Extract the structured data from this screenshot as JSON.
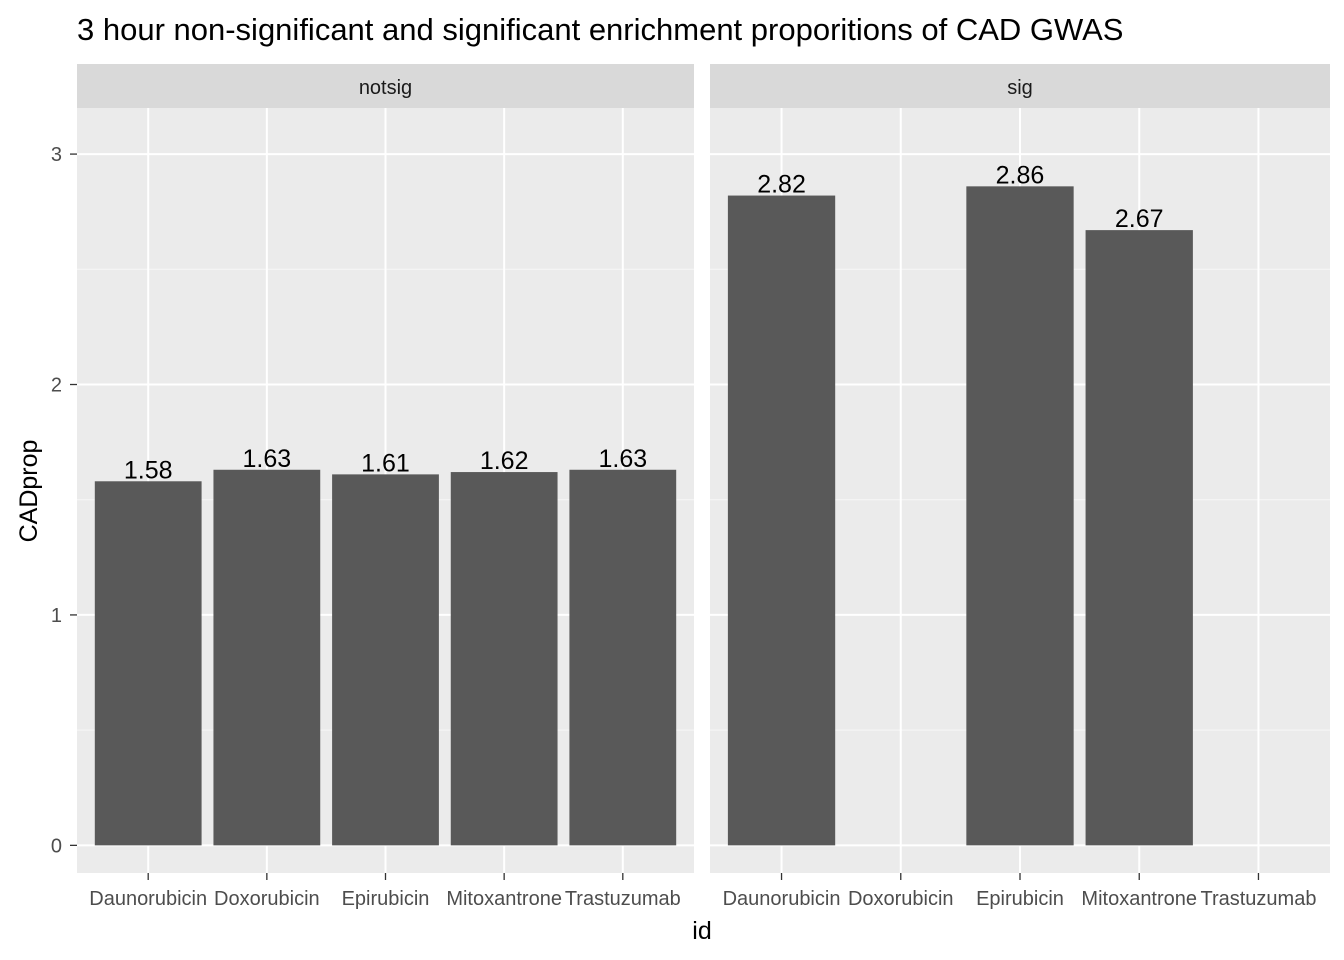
{
  "chart_data": {
    "type": "bar",
    "title": "3 hour non-significant and significant enrichment proporitions of CAD GWAS",
    "xlabel": "id",
    "ylabel": "CADprop",
    "ylim": [
      -0.12,
      3.2
    ],
    "yticks": [
      0,
      1,
      2,
      3
    ],
    "grid": true,
    "legend": "none",
    "colors": {
      "bar": "#595959",
      "panel_bg": "#ebebeb",
      "strip_bg": "#d9d9d9",
      "grid_major": "#ffffff",
      "tick": "#333333"
    },
    "categories": [
      "Daunorubicin",
      "Doxorubicin",
      "Epirubicin",
      "Mitoxantrone",
      "Trastuzumab"
    ],
    "facets": [
      {
        "label": "notsig",
        "values": [
          1.58,
          1.63,
          1.61,
          1.62,
          1.63
        ],
        "value_labels": [
          "1.58",
          "1.63",
          "1.61",
          "1.62",
          "1.63"
        ]
      },
      {
        "label": "sig",
        "values": [
          2.82,
          null,
          2.86,
          2.67,
          null
        ],
        "value_labels": [
          "2.82",
          "",
          "2.86",
          "2.67",
          ""
        ]
      }
    ]
  }
}
